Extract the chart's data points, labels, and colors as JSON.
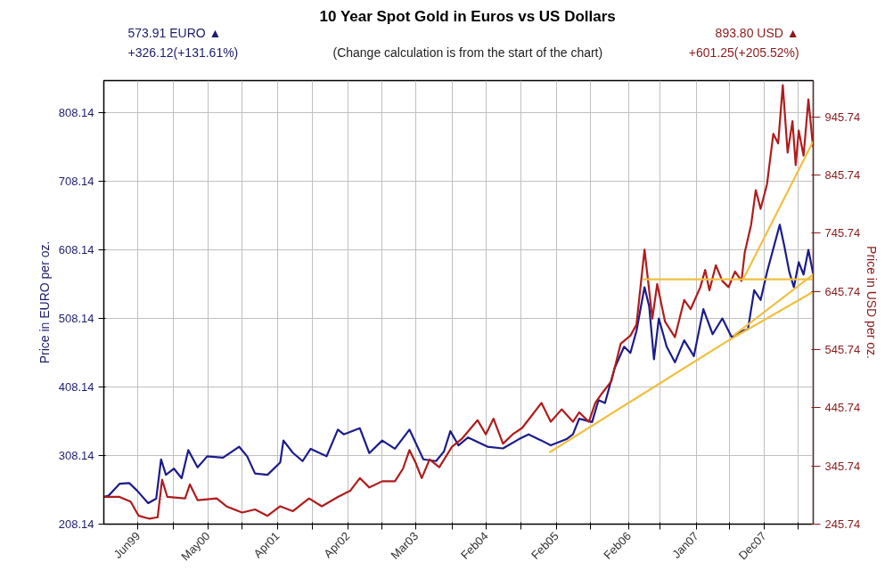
{
  "chart_data": {
    "type": "line",
    "title": "10 Year Spot Gold in Euros vs US Dollars",
    "annotations": [
      "573.91 EURO ▲",
      "+326.12(+131.61%)",
      "(Change calculation is from the start of the chart)",
      "893.80 USD ▲",
      "+601.25(+205.52%)"
    ],
    "ylabel": "Price in EURO per oz.",
    "y2label": "Price in USD per oz.",
    "xlim": [
      "1998-12-15",
      "2008-08-03"
    ],
    "xticks": [
      {
        "value": "1999-06-03",
        "label": "Jun99"
      },
      {
        "value": "1999-11-27",
        "label": null
      },
      {
        "value": "2000-05-14",
        "label": "May00"
      },
      {
        "value": "2000-10-30",
        "label": null
      },
      {
        "value": "2001-04-24",
        "label": "Apr01"
      },
      {
        "value": "2001-10-14",
        "label": null
      },
      {
        "value": "2002-04-08",
        "label": "Apr02"
      },
      {
        "value": "2002-09-26",
        "label": null
      },
      {
        "value": "2003-03-13",
        "label": "Mar03"
      },
      {
        "value": "2003-09-07",
        "label": null
      },
      {
        "value": "2004-02-23",
        "label": "Feb04"
      },
      {
        "value": "2004-08-12",
        "label": null
      },
      {
        "value": "2005-02-06",
        "label": "Feb05"
      },
      {
        "value": "2005-07-25",
        "label": null
      },
      {
        "value": "2006-02-01",
        "label": "Feb06"
      },
      {
        "value": "2006-07-06",
        "label": null
      },
      {
        "value": "2007-01-02",
        "label": "Jan07"
      },
      {
        "value": "2007-06-16",
        "label": null
      },
      {
        "value": "2007-12-04",
        "label": "Dec07"
      },
      {
        "value": "2008-05-21",
        "label": null
      }
    ],
    "ylim": [
      208.14,
      854.7
    ],
    "yticks": [
      208.14,
      308.14,
      408.14,
      508.14,
      608.14,
      708.14,
      808.14
    ],
    "y2lim": [
      245.74,
      1007.9
    ],
    "y2ticks": [
      245.74,
      345.74,
      445.74,
      545.74,
      645.74,
      745.74,
      845.74,
      945.74
    ],
    "grid": true,
    "line_style": "solid",
    "series": [
      {
        "color": "#1c1c8c",
        "x": [
          "1998-12-15",
          "1999-01-09",
          "1999-03-03",
          "1999-04-20",
          "1999-05-29",
          "1999-07-23",
          "1999-09-01",
          "1999-09-25",
          "1999-10-19",
          "1999-11-28",
          "2000-01-05",
          "2000-02-07",
          "2000-03-24",
          "2000-05-11",
          "2000-07-28",
          "2000-10-16",
          "2000-11-25",
          "2001-01-03",
          "2001-03-06",
          "2001-05-08",
          "2001-05-24",
          "2001-07-10",
          "2001-08-27",
          "2001-10-06",
          "2001-12-24",
          "2002-02-18",
          "2002-03-19",
          "2002-06-07",
          "2002-07-24",
          "2002-09-26",
          "2002-11-28",
          "2003-02-08",
          "2003-04-18",
          "2003-06-20",
          "2003-07-29",
          "2003-08-30",
          "2003-10-09",
          "2003-11-26",
          "2004-03-01",
          "2004-05-17",
          "2004-08-04",
          "2004-09-21",
          "2004-11-24",
          "2005-01-09",
          "2005-03-28",
          "2005-04-29",
          "2005-05-30",
          "2005-08-02",
          "2005-09-03",
          "2005-10-05",
          "2005-11-21",
          "2006-01-08",
          "2006-02-08",
          "2006-03-10",
          "2006-04-19",
          "2006-05-12",
          "2006-06-05",
          "2006-06-29",
          "2006-08-07",
          "2006-09-17",
          "2006-11-02",
          "2006-12-20",
          "2007-02-05",
          "2007-03-23",
          "2007-05-10",
          "2007-06-26",
          "2007-08-13",
          "2007-09-14",
          "2007-10-15",
          "2007-11-16",
          "2007-12-18",
          "2008-02-19",
          "2008-03-13",
          "2008-04-06",
          "2008-04-29",
          "2008-05-23",
          "2008-06-16",
          "2008-07-10",
          "2008-08-02"
        ],
        "values": [
          247.79,
          250,
          267,
          268,
          257,
          238.7,
          245.5,
          302.6,
          280,
          289,
          275,
          316,
          291,
          307,
          305,
          321,
          307,
          282,
          280,
          298,
          330,
          312,
          300,
          318,
          307,
          346,
          339,
          348,
          311.7,
          330,
          318,
          346,
          302.6,
          300,
          314,
          343.6,
          323,
          334.5,
          321,
          318.5,
          332,
          339,
          330,
          323,
          332,
          339,
          361.9,
          357,
          389,
          384.7,
          435,
          466.8,
          457.7,
          489.6,
          553.5,
          526,
          448.6,
          508,
          466.8,
          444,
          476,
          453,
          521.6,
          485,
          508,
          480.5,
          489.6,
          492,
          549,
          535,
          576,
          644.7,
          612.8,
          576,
          553.5,
          590,
          572,
          608,
          573.91
        ]
      },
      {
        "color": "#b01c1c",
        "axis": "y2",
        "x": [
          "1998-12-15",
          "1999-03-03",
          "1999-04-27",
          "1999-06-06",
          "1999-07-30",
          "1999-09-08",
          "1999-09-30",
          "1999-10-26",
          "2000-01-22",
          "2000-02-15",
          "2000-03-24",
          "2000-06-27",
          "2000-08-14",
          "2000-10-31",
          "2001-01-03",
          "2001-03-06",
          "2001-05-08",
          "2001-07-10",
          "2001-09-28",
          "2001-11-30",
          "2002-02-18",
          "2002-04-20",
          "2002-06-07",
          "2002-07-24",
          "2002-09-26",
          "2002-11-28",
          "2003-01-07",
          "2003-02-08",
          "2003-03-10",
          "2003-04-10",
          "2003-05-19",
          "2003-07-06",
          "2003-09-07",
          "2003-10-25",
          "2004-01-12",
          "2004-02-22",
          "2004-03-31",
          "2004-05-17",
          "2004-07-04",
          "2004-08-20",
          "2004-10-07",
          "2004-11-24",
          "2005-01-09",
          "2005-03-04",
          "2005-04-29",
          "2005-05-30",
          "2005-07-17",
          "2005-08-18",
          "2005-09-19",
          "2005-11-06",
          "2005-12-22",
          "2006-02-08",
          "2006-03-10",
          "2006-04-19",
          "2006-05-28",
          "2006-06-21",
          "2006-07-30",
          "2006-09-17",
          "2006-11-02",
          "2006-12-04",
          "2007-01-21",
          "2007-02-14",
          "2007-03-07",
          "2007-04-08",
          "2007-05-10",
          "2007-06-10",
          "2007-07-12",
          "2007-08-13",
          "2007-08-29",
          "2007-09-30",
          "2007-10-23",
          "2007-11-16",
          "2007-12-18",
          "2008-01-18",
          "2008-02-11",
          "2008-03-05",
          "2008-03-29",
          "2008-04-22",
          "2008-05-08",
          "2008-05-23",
          "2008-06-16",
          "2008-07-10",
          "2008-08-02"
        ],
        "values": [
          292.55,
          292.5,
          284.5,
          260,
          255,
          257.6,
          322,
          292.5,
          290,
          314,
          287,
          290,
          276.4,
          265.6,
          271,
          260,
          276.4,
          268,
          290,
          276.4,
          292.5,
          303,
          324.8,
          308.7,
          319.4,
          319.4,
          341,
          373,
          351.7,
          324.8,
          357,
          343.6,
          378.6,
          392,
          424.3,
          400,
          427,
          384,
          400,
          411,
          432.4,
          454,
          421.6,
          443,
          421.6,
          437.8,
          421.6,
          454,
          470,
          491.6,
          556,
          569.6,
          588.4,
          717.5,
          599,
          658.3,
          593.6,
          567,
          631,
          615.3,
          653,
          682.5,
          647.6,
          690.6,
          663.7,
          653,
          679.8,
          663.7,
          712,
          760.5,
          819.7,
          787.4,
          830.5,
          916.5,
          900,
          1000,
          884,
          938,
          862.7,
          922,
          879,
          975.7,
          893.8
        ]
      },
      {
        "color": "#f0c040",
        "x": [
          "2005-01-02",
          "2007-06-10",
          "2008-08-02"
        ],
        "values": [
          312.6,
          476,
          546.6
        ]
      },
      {
        "color": "#f0c040",
        "x": [
          "2007-07-04",
          "2008-08-02"
        ],
        "values": [
          482.8,
          571.7
        ]
      },
      {
        "color": "#f0c040",
        "axis": "y2",
        "x": [
          "2007-08-21",
          "2008-08-02"
        ],
        "values": [
          666.4,
          903
        ]
      },
      {
        "color": "#f0c040",
        "axis": "y2",
        "x": [
          "2006-04-11",
          "2008-08-02"
        ],
        "values": [
          666.4,
          666.4
        ]
      }
    ]
  }
}
